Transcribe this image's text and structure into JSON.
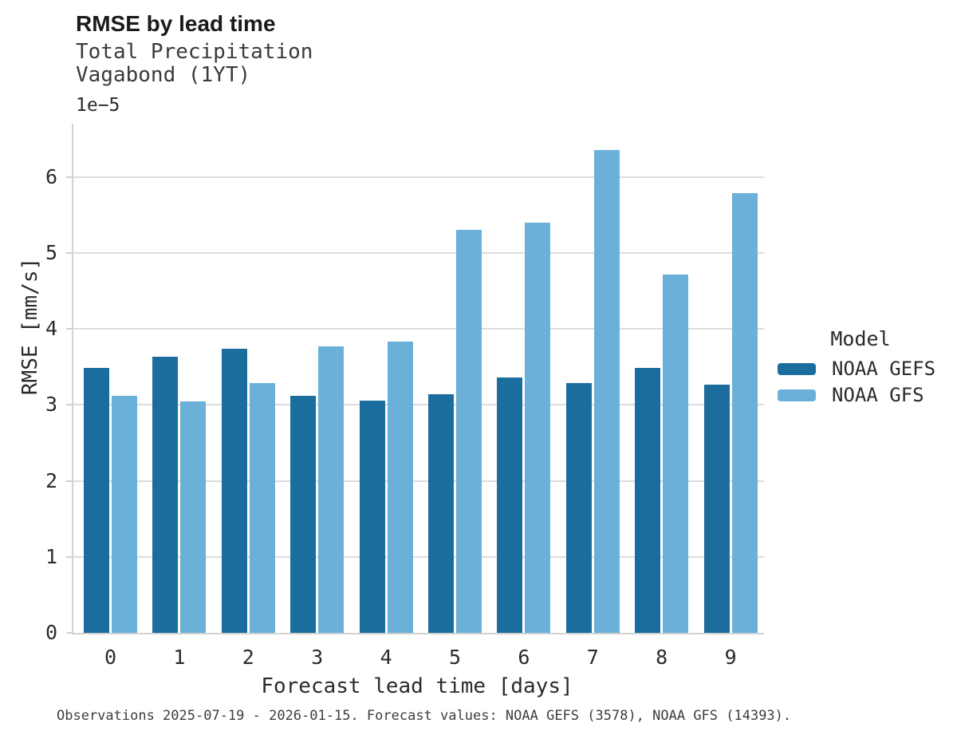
{
  "chart_data": {
    "type": "bar",
    "title": "RMSE by lead time",
    "subtitle": [
      "Total Precipitation",
      "Vagabond (1YT)"
    ],
    "offset_label": "1e−5",
    "xlabel": "Forecast lead time [days]",
    "ylabel": "RMSE [mm/s]",
    "legend_title": "Model",
    "legend_position": "right",
    "grid": "horizontal",
    "background": "#ffffff",
    "grid_color": "#dcdcdc",
    "axis_color": "#d2d2d2",
    "text_color": "#2b2b2b",
    "y_unit_scale": "1e-5",
    "ylim": [
      0,
      6.7
    ],
    "yticks": [
      0,
      1,
      2,
      3,
      4,
      5,
      6
    ],
    "categories": [
      0,
      1,
      2,
      3,
      4,
      5,
      6,
      7,
      8,
      9
    ],
    "series": [
      {
        "name": "NOAA GEFS",
        "color": "#1b6d9e",
        "values": [
          3.49,
          3.63,
          3.74,
          3.12,
          3.06,
          3.14,
          3.36,
          3.29,
          3.49,
          3.27
        ]
      },
      {
        "name": "NOAA GFS",
        "color": "#6ab0d9",
        "values": [
          3.12,
          3.04,
          3.29,
          3.77,
          3.83,
          5.3,
          5.4,
          6.35,
          4.71,
          5.79
        ]
      }
    ],
    "caption": "Observations 2025-07-19 - 2026-01-15. Forecast values: NOAA GEFS (3578), NOAA GFS (14393)."
  }
}
